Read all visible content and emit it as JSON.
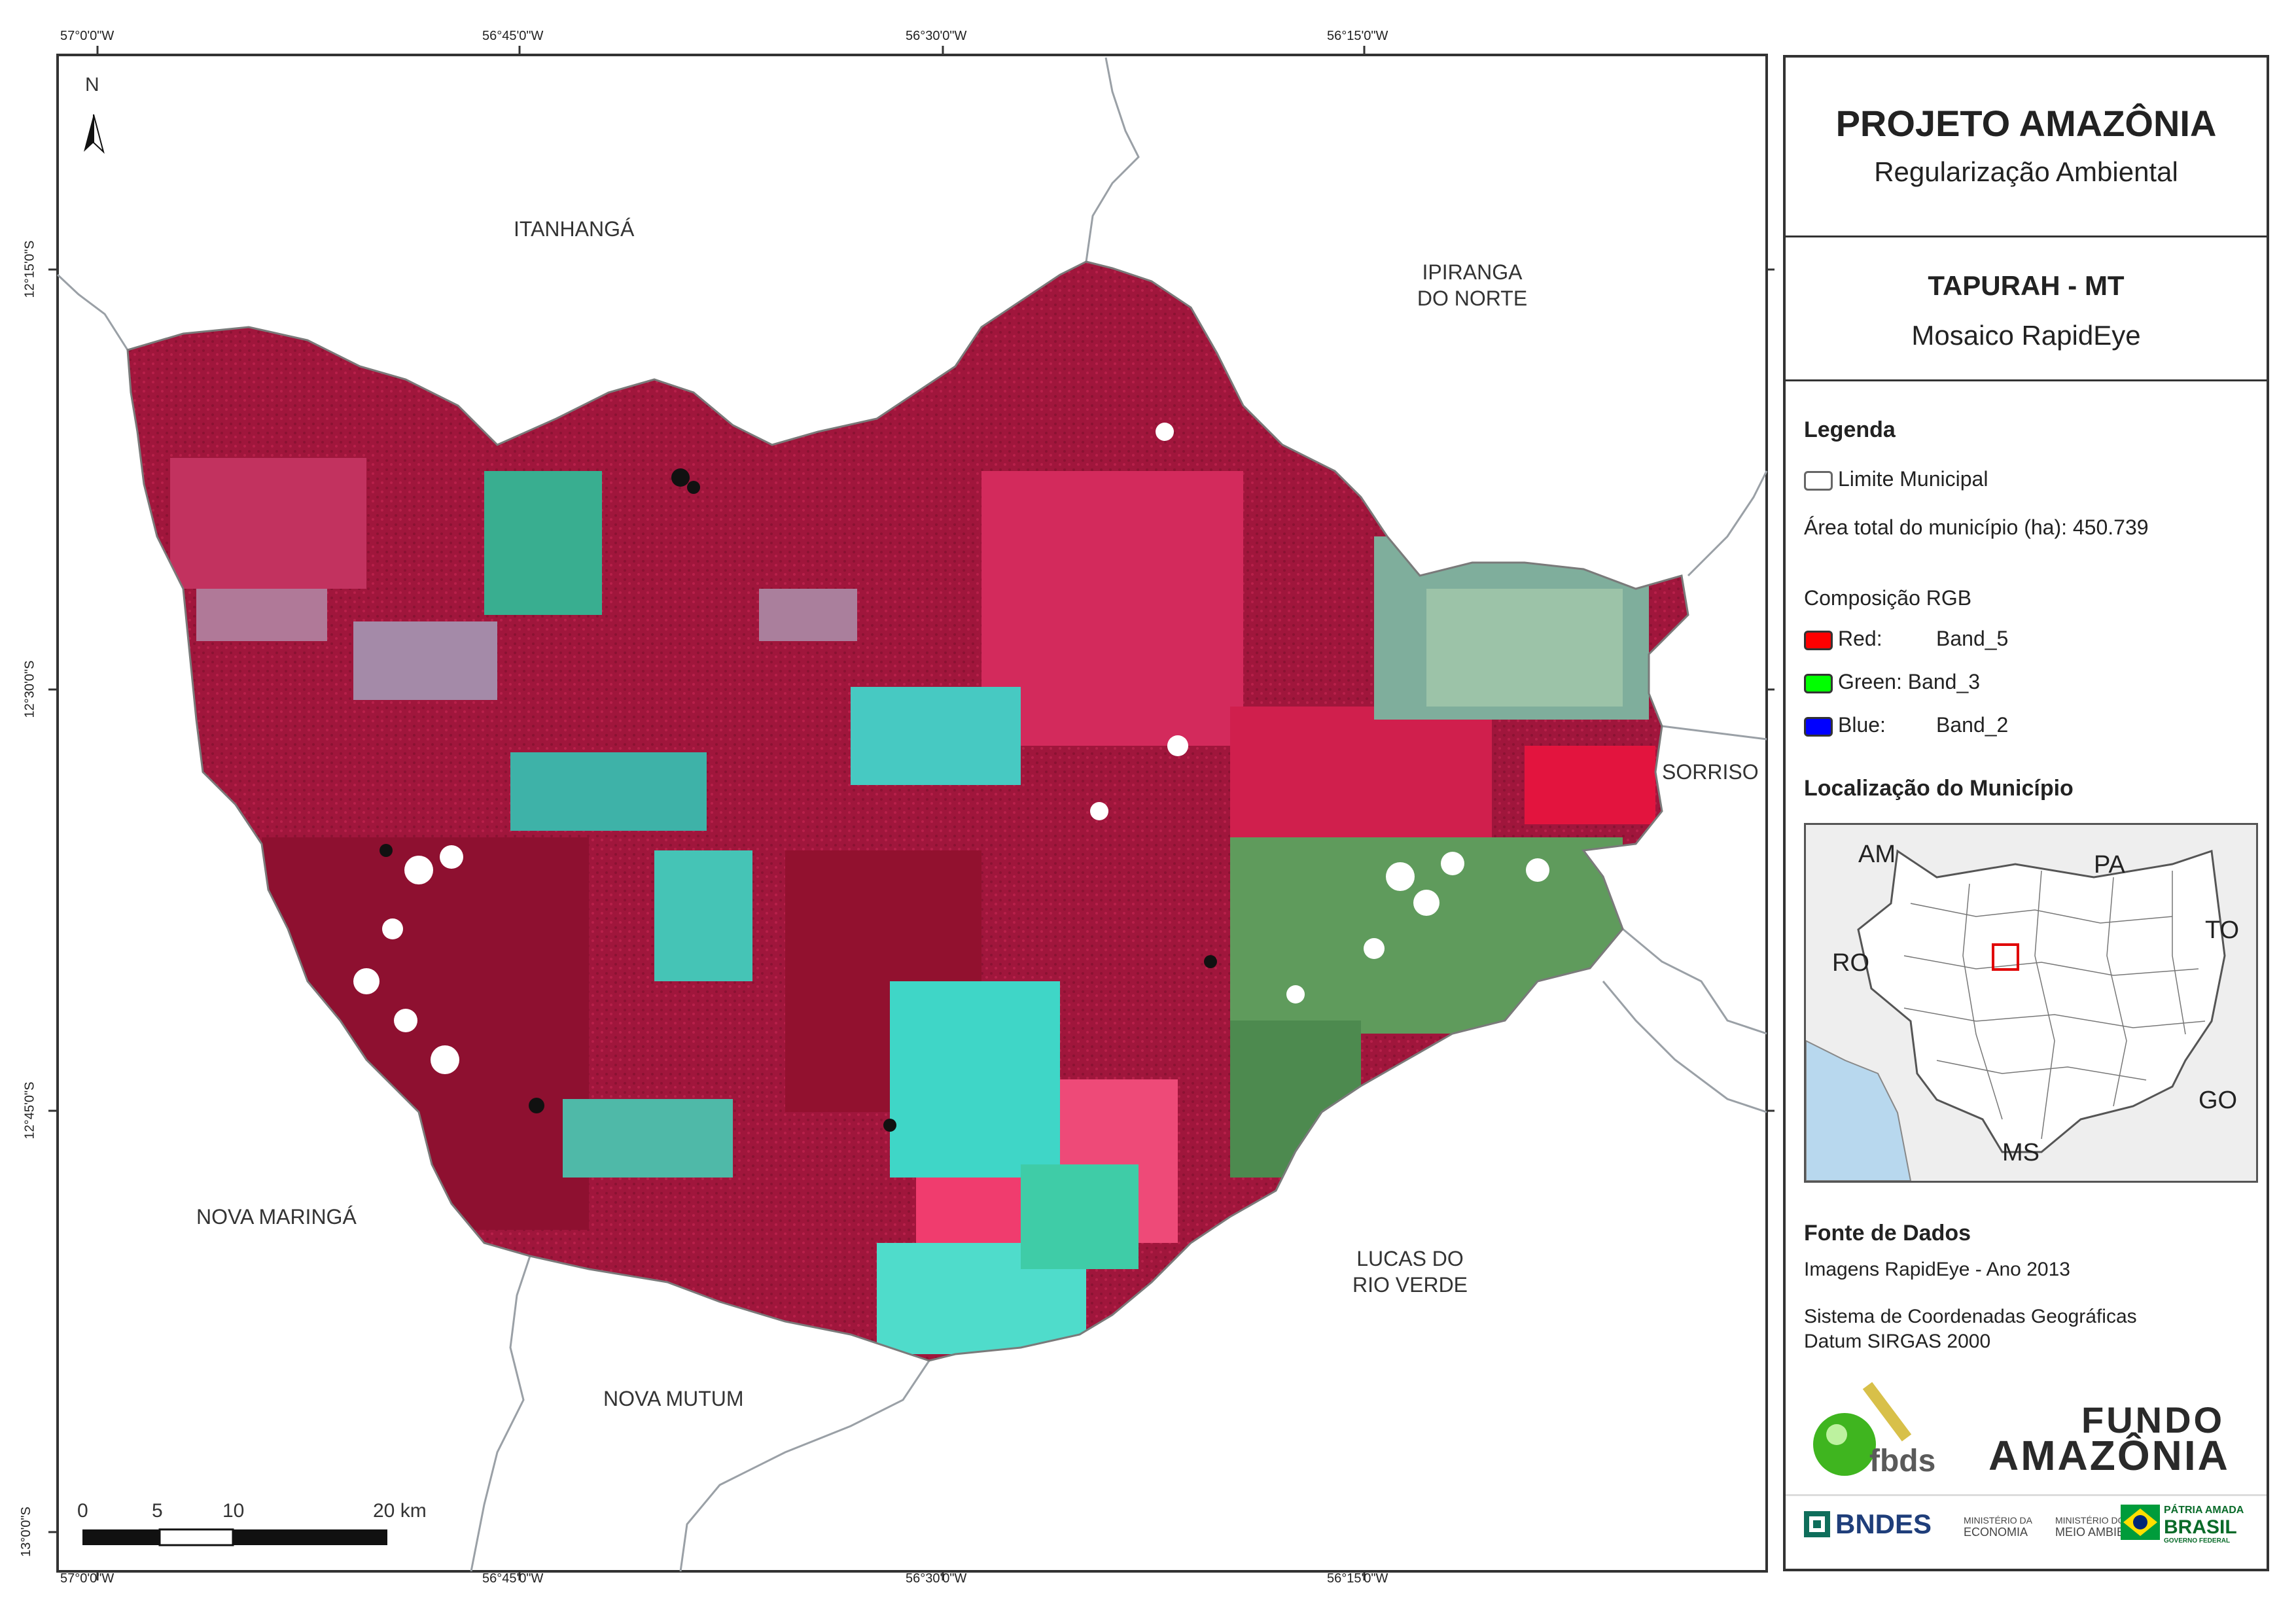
{
  "coords": {
    "top": [
      "57°0'0\"W",
      "56°45'0\"W",
      "56°30'0\"W",
      "56°15'0\"W"
    ],
    "bottom": [
      "57°0'0\"W",
      "56°45'0\"W",
      "56°30'0\"W",
      "56°15'0\"W"
    ],
    "left": [
      "12°15'0\"S",
      "12°30'0\"S",
      "12°45'0\"S",
      "13°0'0\"S"
    ]
  },
  "municipalities": {
    "itanhanga": "ITANHANGÁ",
    "ipiranga_1": "IPIRANGA",
    "ipiranga_2": "DO NORTE",
    "sorriso": "SORRISO",
    "nova_maringa": "NOVA MARINGÁ",
    "lucas_1": "LUCAS DO",
    "lucas_2": "RIO VERDE",
    "nova_mutum": "NOVA MUTUM"
  },
  "north_label": "N",
  "scale": {
    "ticks": [
      "0",
      "5",
      "10",
      "20 km"
    ]
  },
  "panel": {
    "title": "PROJETO AMAZÔNIA",
    "subtitle": "Regularização Ambiental",
    "municipality": "TAPURAH - MT",
    "mosaic": "Mosaico RapidEye",
    "legend_title": "Legenda",
    "limit": "Limite Municipal",
    "area": "Área total do município (ha): 450.739",
    "rgb_title": "Composição RGB",
    "bands": [
      {
        "label": "Red:",
        "band": "Band_5",
        "color": "#ff0000"
      },
      {
        "label": "Green:",
        "band": "Band_3",
        "color": "#00ff00"
      },
      {
        "label": "Blue:",
        "band": "Band_2",
        "color": "#0000ff"
      }
    ],
    "location_title": "Localização do Município",
    "inset_labels": {
      "am": "AM",
      "pa": "PA",
      "to": "TO",
      "ro": "RO",
      "go": "GO",
      "ms": "MS"
    },
    "source_title": "Fonte de Dados",
    "source_1": "Imagens RapidEye - Ano 2013",
    "source_2": "Sistema de Coordenadas Geográficas",
    "source_3": "Datum SIRGAS 2000",
    "logos": {
      "fbds": "fbds",
      "fundo_1": "FUNDO",
      "fundo_2": "AMAZÔNIA",
      "bndes": "BNDES",
      "min1_1": "MINISTÉRIO DA",
      "min1_2": "ECONOMIA",
      "min2_1": "MINISTÉRIO DO",
      "min2_2": "MEIO AMBIENTE",
      "patria": "PÁTRIA AMADA",
      "brasil": "BRASIL",
      "gov": "GOVERNO FEDERAL"
    }
  },
  "colors": {
    "forest": "#a8173e",
    "ag_cyan": "#3fd6c7",
    "ag_green": "#5d9f5a",
    "ag_pink": "#e0417a",
    "ag_gray": "#8fb8a8",
    "water_inset": "#b8d8ee"
  }
}
